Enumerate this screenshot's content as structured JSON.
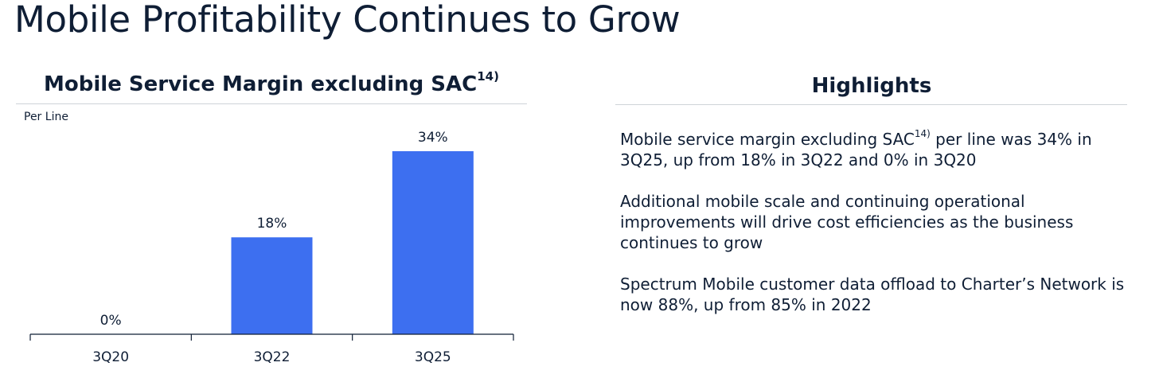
{
  "slide": {
    "title": "Mobile Profitability Continues to Grow"
  },
  "chart_section": {
    "title": "Mobile Service Margin excluding SAC",
    "title_footnote": "14)",
    "subtitle": "Per Line"
  },
  "chart_data": {
    "type": "bar",
    "title": "Mobile Service Margin excluding SAC14)",
    "subtitle": "Per Line",
    "categories": [
      "3Q20",
      "3Q22",
      "3Q25"
    ],
    "values": [
      0,
      18,
      34
    ],
    "value_labels": [
      "0%",
      "18%",
      "34%"
    ],
    "unit": "%",
    "ylim": [
      0,
      34
    ],
    "xlabel": "",
    "ylabel": "",
    "bar_color": "#3d6ff0",
    "grid": false
  },
  "highlights": {
    "title": "Highlights",
    "items": [
      {
        "before": "Mobile service margin excluding SAC",
        "sup": "14)",
        "after": " per line was 34% in 3Q25, up from 18% in 3Q22 and 0% in 3Q20"
      },
      {
        "before": "Additional mobile scale and continuing operational improvements will drive cost efficiencies as the business continues to grow",
        "sup": "",
        "after": ""
      },
      {
        "before": "Spectrum Mobile customer data offload to Charter’s Network is now 88%, up from 85% in 2022",
        "sup": "",
        "after": ""
      }
    ]
  },
  "colors": {
    "text": "#0f1e35",
    "bar": "#3d6ff0",
    "divider": "#cfd3d8",
    "axis": "#0f1e35"
  }
}
